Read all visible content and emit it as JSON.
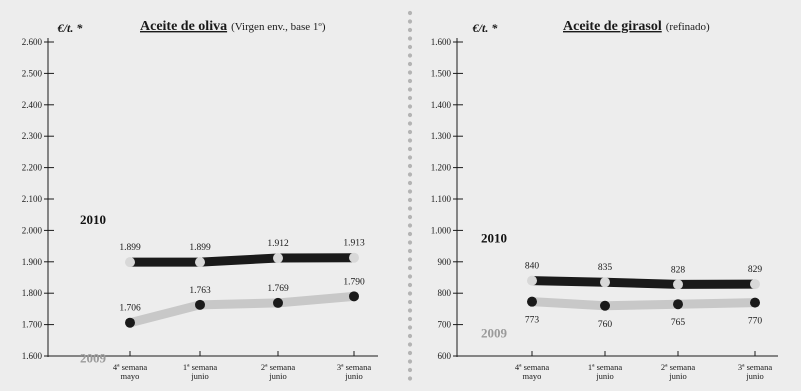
{
  "chart_data": [
    {
      "type": "line",
      "title": "Aceite de oliva",
      "subtitle": "(Virgen env., base 1º)",
      "ylabel": "€/t. *",
      "categories": [
        [
          "4ª semana",
          "mayo"
        ],
        [
          "1ª semana",
          "junio"
        ],
        [
          "2ª semana",
          "junio"
        ],
        [
          "3ª semana",
          "junio"
        ]
      ],
      "ylim": [
        1600,
        2600
      ],
      "yticks": [
        1600,
        1700,
        1800,
        1900,
        2000,
        2100,
        2200,
        2300,
        2400,
        2500,
        2600
      ],
      "ytick_labels": [
        "1.600",
        "1.700",
        "1.800",
        "1.900",
        "2.000",
        "2.100",
        "2.200",
        "2.300",
        "2.400",
        "2.500",
        "2.600"
      ],
      "series": [
        {
          "name": "2010",
          "values": [
            1899,
            1899,
            1912,
            1913
          ],
          "labels": [
            "1.899",
            "1.899",
            "1.912",
            "1.913"
          ],
          "line_color": "#1a1a1a",
          "marker_color": "#d8d8d8",
          "label_position": "above",
          "name_color": "#111111"
        },
        {
          "name": "2009",
          "values": [
            1706,
            1763,
            1769,
            1790
          ],
          "labels": [
            "1.706",
            "1.763",
            "1.769",
            "1.790"
          ],
          "line_color": "#c8c8c8",
          "marker_color": "#1a1a1a",
          "label_position": "above",
          "name_color": "#9a9a9a"
        }
      ]
    },
    {
      "type": "line",
      "title": "Aceite de girasol",
      "subtitle": "(refinado)",
      "ylabel": "€/t. *",
      "categories": [
        [
          "4ª semana",
          "mayo"
        ],
        [
          "1ª semana",
          "junio"
        ],
        [
          "2ª semana",
          "junio"
        ],
        [
          "3ª semana",
          "junio"
        ]
      ],
      "ylim": [
        600,
        1600
      ],
      "yticks": [
        600,
        700,
        800,
        900,
        1000,
        1100,
        1200,
        1300,
        1400,
        1500,
        1600
      ],
      "ytick_labels": [
        "600",
        "700",
        "800",
        "900",
        "1.000",
        "1.100",
        "1.200",
        "1.300",
        "1.400",
        "1.500",
        "1.600"
      ],
      "series": [
        {
          "name": "2010",
          "values": [
            840,
            835,
            828,
            829
          ],
          "labels": [
            "840",
            "835",
            "828",
            "829"
          ],
          "line_color": "#1a1a1a",
          "marker_color": "#d8d8d8",
          "label_position": "above",
          "name_color": "#111111"
        },
        {
          "name": "2009",
          "values": [
            773,
            760,
            765,
            770
          ],
          "labels": [
            "773",
            "760",
            "765",
            "770"
          ],
          "line_color": "#c8c8c8",
          "marker_color": "#1a1a1a",
          "label_position": "below",
          "name_color": "#9a9a9a"
        }
      ]
    }
  ],
  "colors": {
    "background": "#ededed",
    "axis": "#1a1a1a",
    "divider_dots": "#b4b4b4"
  }
}
